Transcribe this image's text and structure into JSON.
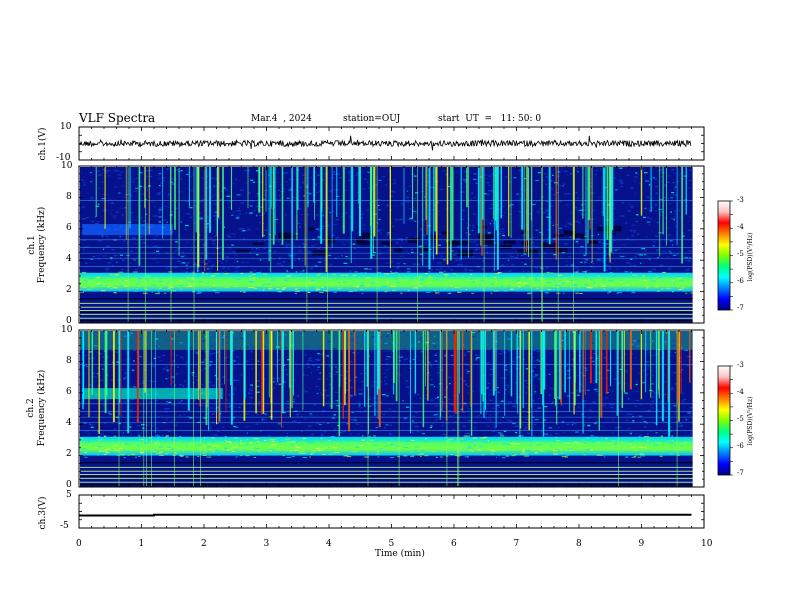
{
  "header": {
    "title": "VLF Spectra",
    "date": "Mar.4  , 2024",
    "station": "station=OUJ",
    "start": "start  UT  =   11: 50: 0"
  },
  "panels": {
    "ch1_waveform": {
      "ylabel": "ch.1(V)",
      "ylim": [
        -10,
        10
      ],
      "tick_labels": [
        "10",
        "-10"
      ]
    },
    "ch1_spectrogram": {
      "ylabel_top": "ch.1",
      "ylabel": "Frequency (kHz)",
      "ylim": [
        0,
        10
      ],
      "tick_labels": [
        "0",
        "2",
        "4",
        "6",
        "8",
        "10"
      ]
    },
    "ch2_spectrogram": {
      "ylabel_top": "ch.2",
      "ylabel": "Frequency (kHz)",
      "ylim": [
        0,
        10
      ],
      "tick_labels": [
        "0",
        "2",
        "4",
        "6",
        "8",
        "10"
      ]
    },
    "ch3_waveform": {
      "ylabel": "ch.3(V)",
      "ylim": [
        -5,
        5
      ],
      "tick_labels": [
        "5",
        "-5"
      ]
    }
  },
  "xaxis": {
    "label": "Time  (min)",
    "xlim": [
      0,
      10
    ],
    "tick_labels": [
      "0",
      "1",
      "2",
      "3",
      "4",
      "5",
      "6",
      "7",
      "8",
      "9",
      "10"
    ]
  },
  "colorbar": {
    "label": "log(PSD)(V²/Hz)",
    "range": [
      -7,
      -3
    ],
    "tick_labels": [
      "-3",
      "-4",
      "-5",
      "-6",
      "-7"
    ],
    "colors": [
      "#000080",
      "#0000ff",
      "#0080ff",
      "#00ffff",
      "#00ff80",
      "#80ff00",
      "#ffff00",
      "#ff8000",
      "#ff0000",
      "#ffc0c0",
      "#ffffff"
    ]
  },
  "chart_data": [
    {
      "type": "line",
      "title": "",
      "xlabel": "",
      "ylabel": "ch.1(V)",
      "xlim": [
        0,
        10
      ],
      "ylim": [
        -10,
        10
      ],
      "series": [
        {
          "x": [
            0,
            9.8
          ],
          "y": [
            0,
            0
          ]
        }
      ]
    },
    {
      "type": "heatmap",
      "ylabel": "Frequency (kHz)",
      "xlim": [
        0,
        10
      ],
      "ylim": [
        0,
        10
      ],
      "band_kHz": [
        2.0,
        3.2
      ],
      "colorbar_range": [
        -7,
        -3
      ]
    },
    {
      "type": "heatmap",
      "ylabel": "Frequency (kHz)",
      "xlim": [
        0,
        10
      ],
      "ylim": [
        0,
        10
      ],
      "band_kHz": [
        2.0,
        3.2
      ],
      "colorbar_range": [
        -7,
        -3
      ]
    },
    {
      "type": "line",
      "xlabel": "Time  (min)",
      "ylabel": "ch.3(V)",
      "xlim": [
        0,
        10
      ],
      "ylim": [
        -5,
        5
      ],
      "series": [
        {
          "x": [
            0,
            1.2,
            1.2,
            3.7,
            3.9,
            6.6,
            6.7,
            9.8
          ],
          "y": [
            -1.2,
            -1.2,
            -1.0,
            -1.0,
            -1.0,
            -1.0,
            -1.0,
            -1.0
          ]
        }
      ]
    }
  ]
}
